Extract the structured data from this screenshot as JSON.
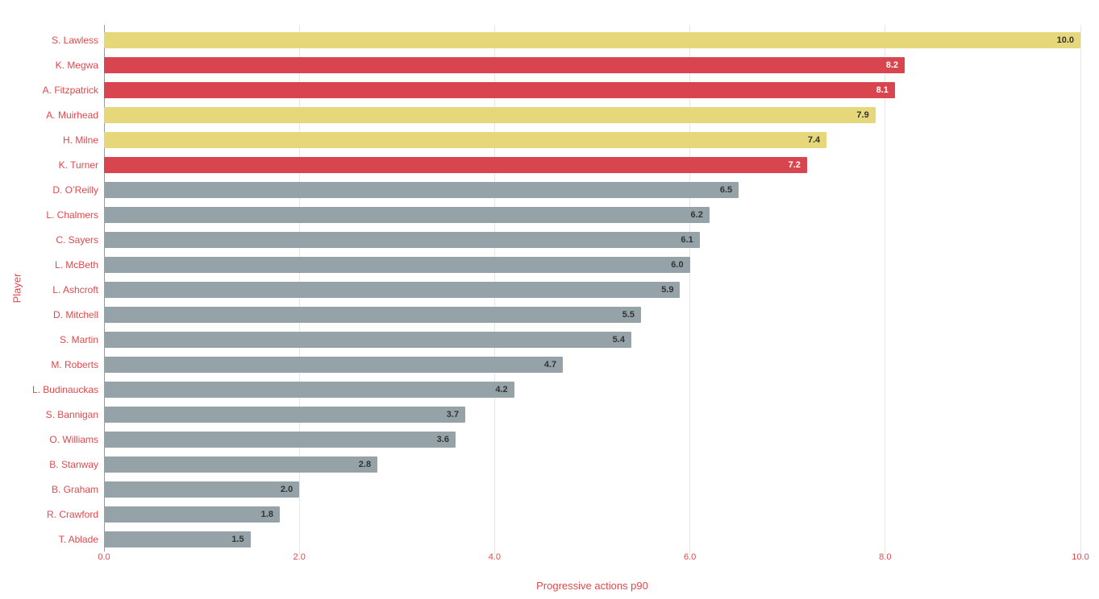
{
  "chart_data": {
    "type": "bar",
    "orientation": "horizontal",
    "title": "",
    "xlabel": "Progressive actions p90",
    "ylabel": "Player",
    "xlim": [
      0,
      10
    ],
    "grid": "vertical-only",
    "legend": "none",
    "xticks": [
      "0.0",
      "2.0",
      "4.0",
      "6.0",
      "8.0",
      "10.0"
    ],
    "xtick_values": [
      0,
      2,
      4,
      6,
      8,
      10
    ],
    "categories": [
      "S. Lawless",
      "K. Megwa",
      "A. Fitzpatrick",
      "A. Muirhead",
      "H. Milne",
      "K. Turner",
      "D. O’Reilly",
      "L. Chalmers",
      "C. Sayers",
      "L. McBeth",
      "L. Ashcroft",
      "D. Mitchell",
      "S. Martin",
      "M. Roberts",
      "L. Budinauckas",
      "S. Bannigan",
      "O. Williams",
      "B. Stanway",
      "B. Graham",
      "R. Crawford",
      "T. Ablade"
    ],
    "values": [
      10.0,
      8.2,
      8.1,
      7.9,
      7.4,
      7.2,
      6.5,
      6.2,
      6.1,
      6.0,
      5.9,
      5.5,
      5.4,
      4.7,
      4.2,
      3.7,
      3.6,
      2.8,
      2.0,
      1.8,
      1.5
    ],
    "value_labels": [
      "10.0",
      "8.2",
      "8.1",
      "7.9",
      "7.4",
      "7.2",
      "6.5",
      "6.2",
      "6.1",
      "6.0",
      "5.9",
      "5.5",
      "5.4",
      "4.7",
      "4.2",
      "3.7",
      "3.6",
      "2.8",
      "2.0",
      "1.8",
      "1.5"
    ],
    "bar_colors": [
      "yellow",
      "red",
      "red",
      "yellow",
      "yellow",
      "red",
      "gray",
      "gray",
      "gray",
      "gray",
      "gray",
      "gray",
      "gray",
      "gray",
      "gray",
      "gray",
      "gray",
      "gray",
      "gray",
      "gray",
      "gray"
    ],
    "colors": {
      "yellow": "#e7d77b",
      "red": "#d8454f",
      "gray": "#95a2a8",
      "text_red": "#e0484d",
      "grid": "#e6e6e6",
      "axis": "#999999",
      "value_dark": "#333333",
      "value_light": "#ffffff"
    }
  }
}
